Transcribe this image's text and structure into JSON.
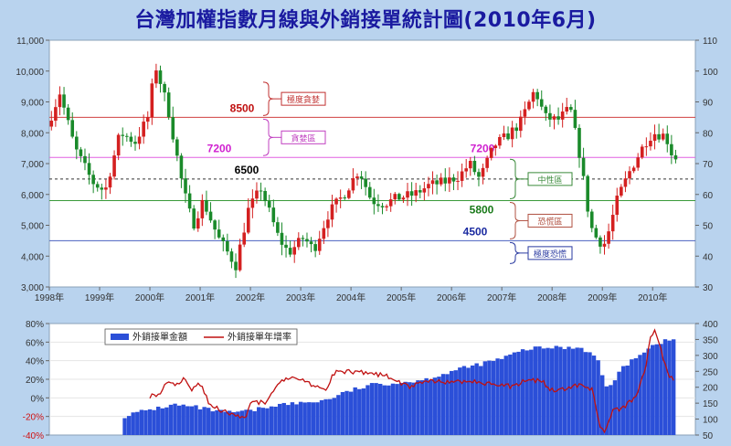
{
  "title": "台灣加權指數月線與外銷接單統計圖(2010年6月)",
  "chart_data": [
    {
      "type": "candlestick",
      "x_tick_labels": [
        "1998年",
        "1999年",
        "2000年",
        "2001年",
        "2002年",
        "2003年",
        "2004年",
        "2005年",
        "2006年",
        "2007年",
        "2008年",
        "2009年",
        "2010年"
      ],
      "left_axis": {
        "ticks": [
          "11,000",
          "10,000",
          "9,000",
          "8,000",
          "7,000",
          "6,000",
          "5,000",
          "4,000",
          "3,000"
        ],
        "ylim": [
          3000,
          11000
        ]
      },
      "right_axis": {
        "ticks": [
          "110",
          "100",
          "90",
          "80",
          "70",
          "60",
          "50",
          "40",
          "30"
        ],
        "ylim": [
          30,
          110
        ]
      },
      "up_color": "#d42020",
      "down_color": "#1a8a2a",
      "reference_lines": [
        {
          "label": "8500",
          "value": 8500,
          "color": "#d04040",
          "label_color": "#c01010",
          "dashed": false
        },
        {
          "label": "7200",
          "value": 7200,
          "color": "#e060e0",
          "label_color": "#d020d0",
          "dashed": false
        },
        {
          "label": "7200",
          "value": 7200,
          "color": "#e060e0",
          "label_color": "#d020d0",
          "dashed": false
        },
        {
          "label": "6500",
          "value": 6500,
          "color": "#333333",
          "label_color": "#000000",
          "dashed": true
        },
        {
          "label": "5800",
          "value": 5800,
          "color": "#3a9a3a",
          "label_color": "#1a7a1a",
          "dashed": false
        },
        {
          "label": "4500",
          "value": 4500,
          "color": "#4a60c0",
          "label_color": "#1a2aa0",
          "dashed": false
        }
      ],
      "zones": [
        {
          "label": "極度貪婪",
          "color": "#c03030"
        },
        {
          "label": "貪婪區",
          "color": "#c040c0"
        },
        {
          "label": "中性區",
          "color": "#3a8a3a"
        },
        {
          "label": "恐慌區",
          "color": "#b05040"
        },
        {
          "label": "極度恐慌",
          "color": "#2a3aa0"
        }
      ],
      "anchors": [
        [
          1998.0,
          8200
        ],
        [
          1998.25,
          9300
        ],
        [
          1998.55,
          7500
        ],
        [
          1998.9,
          6400
        ],
        [
          1999.15,
          6100
        ],
        [
          1999.45,
          8000
        ],
        [
          1999.75,
          7700
        ],
        [
          2000.0,
          8500
        ],
        [
          2000.15,
          10200
        ],
        [
          2000.4,
          8800
        ],
        [
          2000.7,
          6200
        ],
        [
          2000.9,
          5000
        ],
        [
          2001.1,
          5800
        ],
        [
          2001.4,
          4600
        ],
        [
          2001.75,
          3700
        ],
        [
          2002.0,
          5500
        ],
        [
          2002.25,
          6200
        ],
        [
          2002.6,
          4600
        ],
        [
          2002.8,
          4100
        ],
        [
          2003.1,
          4600
        ],
        [
          2003.3,
          4200
        ],
        [
          2003.6,
          5400
        ],
        [
          2003.9,
          6000
        ],
        [
          2004.2,
          6800
        ],
        [
          2004.45,
          5800
        ],
        [
          2004.7,
          5700
        ],
        [
          2005.0,
          5900
        ],
        [
          2005.3,
          6000
        ],
        [
          2005.6,
          6300
        ],
        [
          2005.9,
          6400
        ],
        [
          2006.2,
          6600
        ],
        [
          2006.4,
          7000
        ],
        [
          2006.6,
          6500
        ],
        [
          2006.9,
          7600
        ],
        [
          2007.15,
          7900
        ],
        [
          2007.4,
          8300
        ],
        [
          2007.7,
          9400
        ],
        [
          2007.9,
          8500
        ],
        [
          2008.15,
          8400
        ],
        [
          2008.4,
          8800
        ],
        [
          2008.6,
          7200
        ],
        [
          2008.8,
          5000
        ],
        [
          2008.95,
          4500
        ],
        [
          2009.1,
          4400
        ],
        [
          2009.35,
          5900
        ],
        [
          2009.6,
          6800
        ],
        [
          2009.9,
          7700
        ],
        [
          2010.05,
          8000
        ],
        [
          2010.3,
          7900
        ],
        [
          2010.45,
          7200
        ]
      ]
    },
    {
      "type": "bar+line",
      "series": [
        {
          "name": "外銷接單金額",
          "color": "#2b4fd8"
        },
        {
          "name": "外銷接單年增率",
          "color": "#c01010"
        }
      ],
      "left_axis": {
        "ticks": [
          "80%",
          "60%",
          "40%",
          "20%",
          "0%",
          "-20%",
          "-40%"
        ],
        "ylim": [
          -40,
          80
        ]
      },
      "right_axis": {
        "ticks": [
          "400",
          "350",
          "300",
          "250",
          "200",
          "150",
          "100",
          "50"
        ],
        "ylim": [
          50,
          400
        ]
      },
      "bar_anchors": [
        [
          1999.5,
          110
        ],
        [
          2000.0,
          130
        ],
        [
          2000.5,
          145
        ],
        [
          2001.0,
          135
        ],
        [
          2001.5,
          120
        ],
        [
          2002.0,
          125
        ],
        [
          2002.5,
          145
        ],
        [
          2003.0,
          150
        ],
        [
          2003.5,
          160
        ],
        [
          2004.0,
          190
        ],
        [
          2004.5,
          210
        ],
        [
          2005.0,
          215
        ],
        [
          2005.5,
          225
        ],
        [
          2006.0,
          250
        ],
        [
          2006.5,
          270
        ],
        [
          2007.0,
          290
        ],
        [
          2007.5,
          320
        ],
        [
          2008.0,
          325
        ],
        [
          2008.6,
          325
        ],
        [
          2008.9,
          290
        ],
        [
          2009.1,
          190
        ],
        [
          2009.3,
          240
        ],
        [
          2009.6,
          290
        ],
        [
          2009.9,
          320
        ],
        [
          2010.1,
          340
        ],
        [
          2010.45,
          350
        ]
      ],
      "line_points": [
        [
          2000.0,
          2
        ],
        [
          2000.2,
          5
        ],
        [
          2000.4,
          20
        ],
        [
          2000.5,
          12
        ],
        [
          2000.7,
          22
        ],
        [
          2000.8,
          8
        ],
        [
          2001.0,
          15
        ],
        [
          2001.2,
          -8
        ],
        [
          2001.5,
          -15
        ],
        [
          2001.7,
          -20
        ],
        [
          2001.9,
          -22
        ],
        [
          2002.0,
          -5
        ],
        [
          2002.3,
          -5
        ],
        [
          2002.6,
          20
        ],
        [
          2002.9,
          22
        ],
        [
          2003.2,
          15
        ],
        [
          2003.5,
          10
        ],
        [
          2003.7,
          30
        ],
        [
          2003.9,
          28
        ],
        [
          2004.2,
          28
        ],
        [
          2004.5,
          25
        ],
        [
          2004.7,
          24
        ],
        [
          2004.9,
          18
        ],
        [
          2005.2,
          12
        ],
        [
          2005.5,
          18
        ],
        [
          2005.8,
          18
        ],
        [
          2006.0,
          16
        ],
        [
          2006.3,
          18
        ],
        [
          2006.6,
          16
        ],
        [
          2006.9,
          15
        ],
        [
          2007.2,
          12
        ],
        [
          2007.5,
          20
        ],
        [
          2007.8,
          18
        ],
        [
          2008.0,
          8
        ],
        [
          2008.3,
          10
        ],
        [
          2008.6,
          15
        ],
        [
          2008.8,
          8
        ],
        [
          2008.95,
          -30
        ],
        [
          2009.05,
          -38
        ],
        [
          2009.2,
          -15
        ],
        [
          2009.45,
          -10
        ],
        [
          2009.7,
          5
        ],
        [
          2009.85,
          30
        ],
        [
          2009.95,
          65
        ],
        [
          2010.05,
          75
        ],
        [
          2010.2,
          45
        ],
        [
          2010.35,
          22
        ],
        [
          2010.45,
          20
        ]
      ],
      "x_range": [
        1998,
        2010.85
      ]
    }
  ]
}
